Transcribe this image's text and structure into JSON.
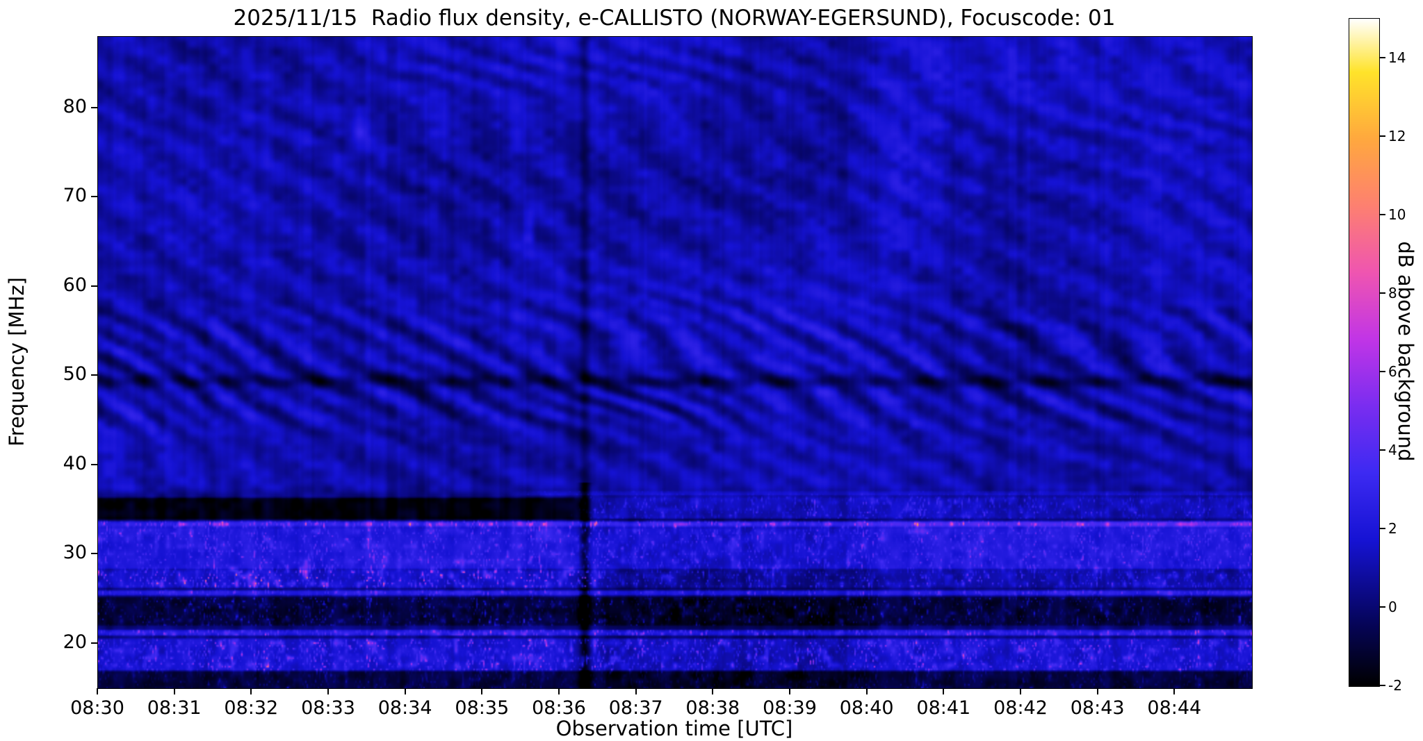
{
  "figure": {
    "background_color": "#ffffff"
  },
  "chart_data": {
    "type": "heatmap",
    "title": "2025/11/15  Radio flux density, e-CALLISTO (NORWAY-EGERSUND), Focuscode: 01",
    "xlabel": "Observation time [UTC]",
    "ylabel": "Frequency [MHz]",
    "x_ticks": [
      "08:30",
      "08:31",
      "08:32",
      "08:33",
      "08:34",
      "08:35",
      "08:36",
      "08:37",
      "08:38",
      "08:39",
      "08:40",
      "08:41",
      "08:42",
      "08:43",
      "08:44"
    ],
    "x_start_utc": "08:30",
    "x_span_min": 15,
    "x_tick_interval_min": 1,
    "y_ticks": [
      20,
      30,
      40,
      50,
      60,
      70,
      80
    ],
    "y_range_mhz": [
      15,
      88
    ],
    "grid": false,
    "colorbar": {
      "label": "dB above background",
      "ticks": [
        -2,
        0,
        2,
        4,
        6,
        8,
        10,
        12,
        14
      ],
      "range_db": [
        -2,
        15
      ],
      "position": "right"
    },
    "colormap": {
      "name": "gnuplot2-like (black-blue-violet-magenta-orange-yellow-white)",
      "stops": [
        [
          0.0,
          "#000000"
        ],
        [
          0.1,
          "#06055f"
        ],
        [
          0.22,
          "#1613d4"
        ],
        [
          0.32,
          "#3d2af2"
        ],
        [
          0.42,
          "#7a2df0"
        ],
        [
          0.52,
          "#c135e6"
        ],
        [
          0.62,
          "#ef55b0"
        ],
        [
          0.72,
          "#fd8070"
        ],
        [
          0.82,
          "#ffa83e"
        ],
        [
          0.92,
          "#ffe32a"
        ],
        [
          1.0,
          "#ffffff"
        ]
      ]
    },
    "background_model": {
      "base_db": 1.15,
      "low_base_db": 0.25,
      "noise_db": 0.65,
      "ripple_db": 0.45
    },
    "interference_band": {
      "f_range": [
        44,
        57
      ],
      "wave_db": 0.85,
      "dark_line_mhz": 49.4,
      "dark_line_db": 1.5
    },
    "rfi_bands": [
      {
        "name": "37 MHz carrier (second half)",
        "f_range": [
          36.55,
          37.05
        ],
        "amp_db": 1.3,
        "speckle_db": 1.2,
        "t_window_min": [
          5.5,
          15.5
        ]
      },
      {
        "name": "33.3 MHz RFI line (brightens with time)",
        "f_range": [
          33.05,
          33.65
        ],
        "amp_db": 2.4,
        "ramp_db": 1.4,
        "speckle_db": 5.5
      },
      {
        "name": "quiet dark gap 34-36 MHz (first half)",
        "f_range": [
          33.85,
          36.3
        ],
        "amp_db": -2.0,
        "t_window_min": [
          -1,
          6.3
        ]
      },
      {
        "name": "34-36.5 MHz scatter (second half)",
        "f_range": [
          34.0,
          36.4
        ],
        "amp_db": 0.9,
        "speckle_db": 2.5,
        "t_window_min": [
          6.3,
          15.5
        ]
      },
      {
        "name": "28-33 MHz broadcast band",
        "f_range": [
          28.3,
          33.0
        ],
        "amp_db": 1.9,
        "speckle_db": 2.8
      },
      {
        "name": "27 MHz CB band strong speckles early",
        "f_range": [
          26.2,
          28.2
        ],
        "amp_db": 1.3,
        "speckle_db": 6.0,
        "t_window_min": [
          -1,
          6.6
        ]
      },
      {
        "name": "27 MHz CB band weaker late",
        "f_range": [
          26.2,
          28.2
        ],
        "amp_db": 0.7,
        "speckle_db": 3.2,
        "t_window_min": [
          6.6,
          15.5
        ]
      },
      {
        "name": "25.6 MHz line",
        "f_range": [
          25.35,
          25.9
        ],
        "amp_db": 2.2,
        "speckle_db": 3.2
      },
      {
        "name": "quiet dark 22-25 MHz",
        "f_range": [
          21.95,
          25.15
        ],
        "amp_db": -1.3,
        "speckle_db": 2.6
      },
      {
        "name": "21.1 MHz line with hot segments",
        "f_range": [
          20.85,
          21.45
        ],
        "amp_db": 2.2,
        "speckle_db": 5.0
      },
      {
        "name": "17-20.5 MHz speckled band",
        "f_range": [
          16.9,
          20.5
        ],
        "amp_db": 1.4,
        "speckle_db": 4.2
      },
      {
        "name": "bottom quiet strip",
        "f_range": [
          14.5,
          16.85
        ],
        "amp_db": -1.2,
        "speckle_db": 1.5
      }
    ],
    "events": [
      {
        "type": "dark_column",
        "name": "dark vertical gap near 08:36:20",
        "t_min": 6.33,
        "sigma_min": 0.05,
        "amp_db": -3.0,
        "f_max_mhz": 38,
        "above_fraction": 0.4
      },
      {
        "type": "patch",
        "name": "broad blue enhancement 08:40:30 around 74 MHz",
        "t_min": 10.5,
        "sigma_min": 0.3,
        "f_mhz": 74,
        "f_sigma_mhz": 7,
        "amp_db": 1.1
      },
      {
        "type": "patch",
        "name": "small blue blob 08:33:25 at 78 MHz",
        "t_min": 3.4,
        "sigma_min": 0.07,
        "f_mhz": 77.5,
        "f_sigma_mhz": 1.7,
        "amp_db": 1.7
      },
      {
        "type": "patch",
        "name": "small blue blob 08:35:35 at 66 MHz",
        "t_min": 5.6,
        "sigma_min": 0.05,
        "f_mhz": 66.5,
        "f_sigma_mhz": 2.3,
        "amp_db": 1.5
      },
      {
        "type": "shade",
        "name": "quieter low band 08:36:30-08:40",
        "t_range_min": [
          6.5,
          10.1
        ],
        "f_max_mhz": 34,
        "amp_db": -0.6
      }
    ]
  }
}
